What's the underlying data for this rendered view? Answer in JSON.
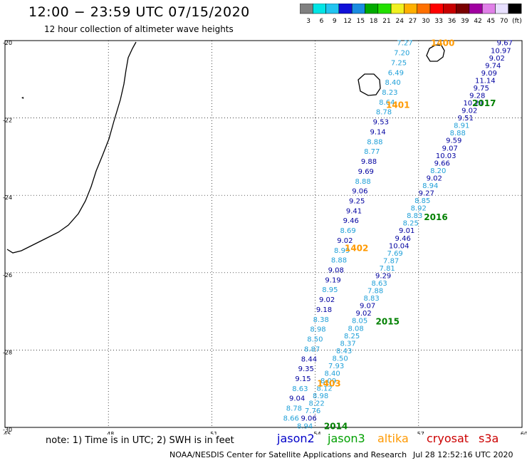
{
  "header": {
    "title": "12:00 − 23:59 UTC 07/15/2020",
    "subtitle": "12 hour collection of altimeter wave heights"
  },
  "colorbar": {
    "labels": [
      "3",
      "6",
      "9",
      "12",
      "15",
      "18",
      "21",
      "24",
      "27",
      "30",
      "33",
      "36",
      "39",
      "42",
      "45",
      "70",
      "(ft)"
    ],
    "colors": [
      "#808080",
      "#00e5e5",
      "#22c4f0",
      "#1010d8",
      "#1a8ce0",
      "#00aa00",
      "#22e000",
      "#f0f020",
      "#ffb000",
      "#ff7000",
      "#ff0000",
      "#c80000",
      "#7a0000",
      "#a000a0",
      "#e080e8",
      "#e8e0ff",
      "#000000"
    ]
  },
  "map": {
    "lon_range": [
      45,
      60
    ],
    "lat_range": [
      -30,
      -20
    ],
    "x_ticks": [
      "45",
      "48",
      "51",
      "54",
      "57",
      "60"
    ],
    "y_ticks": [
      "-20",
      "-22",
      "-24",
      "-26",
      "-28",
      "-30"
    ],
    "grid": true
  },
  "colors": {
    "jason2": "#0000a0",
    "jason3": "#20a0d8",
    "altika": "#ff9900",
    "cryosat": "#cc0000",
    "s3a": "#cc0000",
    "label_green": "#008000",
    "label_orange": "#ff9900"
  },
  "chart_data": {
    "type": "scatter",
    "tracks": [
      {
        "id": "west",
        "values": [
          "7.27",
          "7.20",
          "7.25",
          "6.49",
          "8.40",
          "8.23",
          "8.64",
          "8.78",
          "9.53",
          "9.14",
          "8.88",
          "8.77",
          "9.88",
          "9.69",
          "8.88",
          "9.06",
          "9.25",
          "9.41",
          "9.46",
          "8.69",
          "9.02",
          "8.99",
          "8.88",
          "9.08",
          "9.19",
          "8.95",
          "9.02",
          "9.18",
          "8.38",
          "8.98",
          "8.50",
          "8.87",
          "8.44",
          "9.35",
          "9.15",
          "8.63",
          "9.04",
          "8.78",
          "8.66"
        ],
        "colors": [
          "j3",
          "j3",
          "j3",
          "j3",
          "j3",
          "j3",
          "j3",
          "j3",
          "j2",
          "j2",
          "j3",
          "j3",
          "j2",
          "j2",
          "j3",
          "j2",
          "j2",
          "j2",
          "j2",
          "j3",
          "j2",
          "j3",
          "j3",
          "j2",
          "j2",
          "j3",
          "j2",
          "j2",
          "j3",
          "j3",
          "j3",
          "j3",
          "j2",
          "j2",
          "j2",
          "j3",
          "j2",
          "j3",
          "j3"
        ]
      },
      {
        "id": "east",
        "values": [
          "9.67",
          "10.97",
          "9.02",
          "9.74",
          "9.09",
          "11.14",
          "9.75",
          "9.28",
          "10.21",
          "9.02",
          "9.51",
          "8.91",
          "8.88",
          "9.59",
          "9.07",
          "10.03",
          "9.66",
          "8.20",
          "9.02",
          "8.94",
          "9.27",
          "8.85",
          "8.92",
          "8.83",
          "8.25",
          "9.01",
          "9.46",
          "10.04",
          "7.69",
          "7.87",
          "7.81",
          "9.29",
          "8.63",
          "7.88",
          "8.83",
          "9.07",
          "9.02",
          "8.05",
          "8.08",
          "8.25",
          "8.37",
          "8.43",
          "8.50",
          "7.93",
          "8.40",
          "8.09",
          "8.12",
          "8.98",
          "8.22",
          "7.76",
          "9.06",
          "8.94"
        ],
        "colors": [
          "j2",
          "j2",
          "j2",
          "j2",
          "j2",
          "j2",
          "j2",
          "j2",
          "j2",
          "j2",
          "j2",
          "j3",
          "j3",
          "j2",
          "j2",
          "j2",
          "j2",
          "j3",
          "j2",
          "j3",
          "j2",
          "j3",
          "j3",
          "j3",
          "j3",
          "j2",
          "j2",
          "j2",
          "j3",
          "j3",
          "j3",
          "j2",
          "j3",
          "j3",
          "j3",
          "j2",
          "j2",
          "j3",
          "j3",
          "j3",
          "j3",
          "j3",
          "j3",
          "j3",
          "j3",
          "j3",
          "j3",
          "j3",
          "j3",
          "j3",
          "j2",
          "j3"
        ]
      }
    ],
    "time_labels": [
      {
        "text": "1400",
        "lon": 57.7,
        "lat": -20.05,
        "color": "altika"
      },
      {
        "text": "1401",
        "lon": 56.4,
        "lat": -21.65,
        "color": "altika"
      },
      {
        "text": "1402",
        "lon": 55.2,
        "lat": -25.35,
        "color": "altika"
      },
      {
        "text": "1403",
        "lon": 54.4,
        "lat": -28.85,
        "color": "altika"
      },
      {
        "text": "2017",
        "lon": 58.9,
        "lat": -21.6,
        "color": "label_green"
      },
      {
        "text": "2016",
        "lon": 57.5,
        "lat": -24.55,
        "color": "label_green"
      },
      {
        "text": "2015",
        "lon": 56.1,
        "lat": -27.25,
        "color": "label_green"
      },
      {
        "text": "2014",
        "lon": 54.6,
        "lat": -29.95,
        "color": "label_green"
      }
    ]
  },
  "footer": {
    "note": "note:  1) Time is in UTC;  2) SWH is in feet",
    "legend": {
      "jason2": "jason2",
      "jason3": "jason3",
      "altika": "altika",
      "cryosat": "cryosat",
      "s3a": "s3a"
    },
    "credit": "NOAA/NESDIS Center for Satellite Applications and Research",
    "timestamp": "Jul 28 12:52:16 UTC 2020"
  }
}
